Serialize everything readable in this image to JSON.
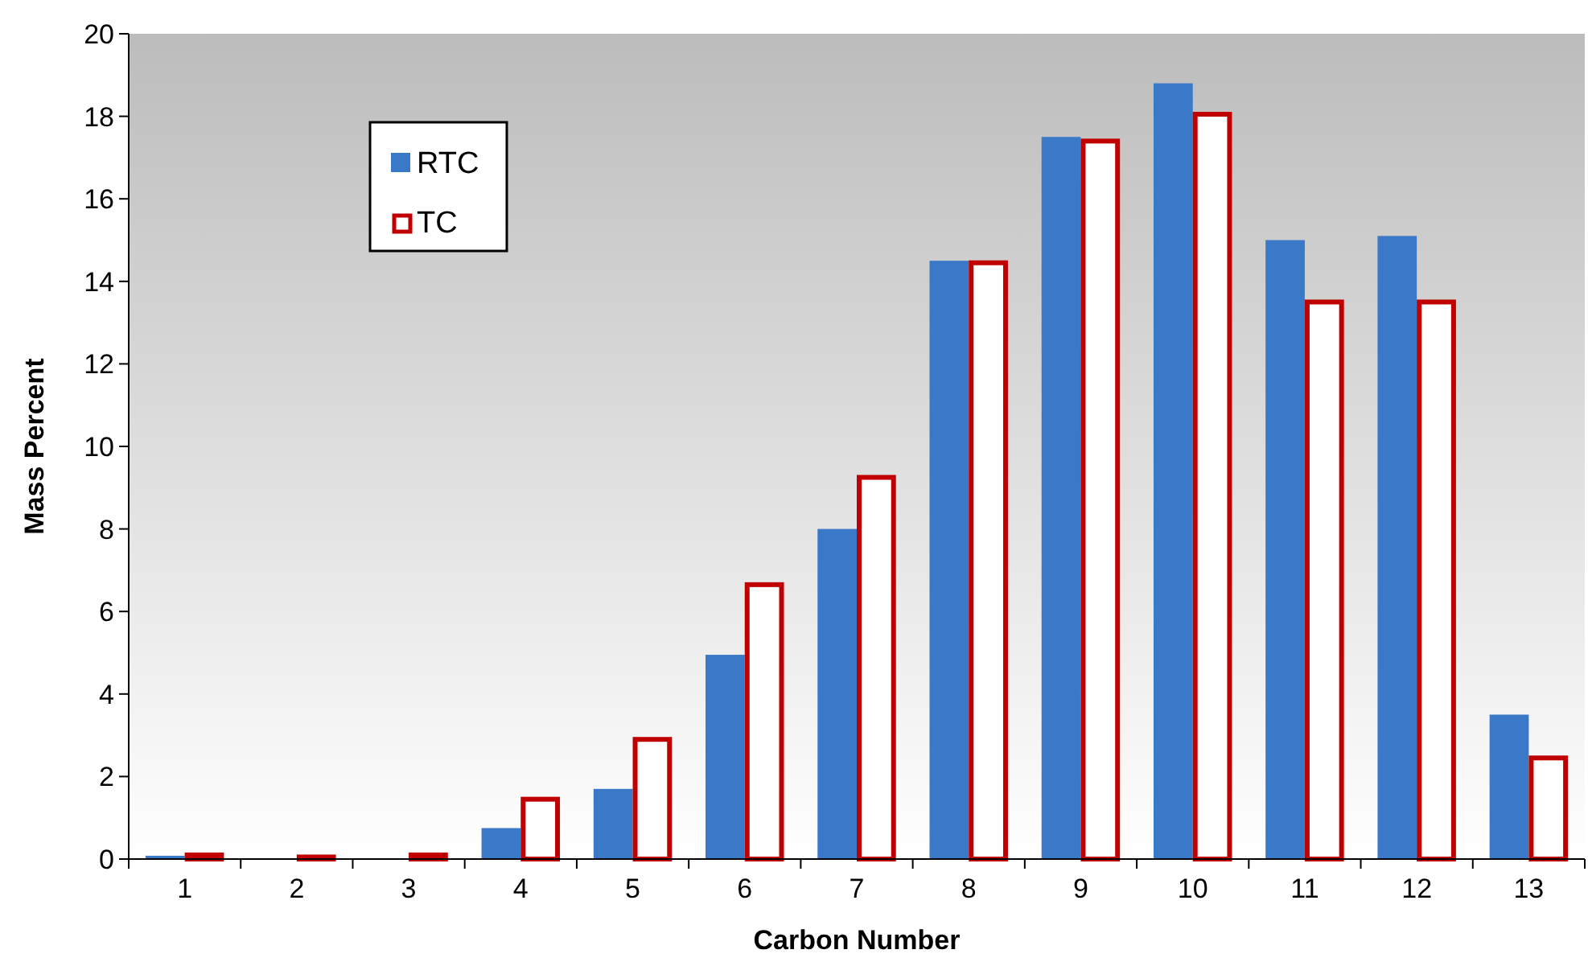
{
  "chart_data": {
    "type": "bar",
    "xlabel": "Carbon Number",
    "ylabel": "Mass Percent",
    "categories": [
      "1",
      "2",
      "3",
      "4",
      "5",
      "6",
      "7",
      "8",
      "9",
      "10",
      "11",
      "12",
      "13"
    ],
    "series": [
      {
        "name": "RTC",
        "color": "#3a78c8",
        "values": [
          0.08,
          null,
          null,
          0.75,
          1.7,
          4.95,
          8.0,
          14.5,
          17.5,
          18.8,
          15.0,
          15.1,
          3.5
        ]
      },
      {
        "name": "TC",
        "color": "#c00000",
        "values": [
          0.1,
          0.05,
          0.1,
          1.45,
          2.9,
          6.65,
          9.25,
          14.45,
          17.4,
          18.05,
          13.5,
          13.5,
          2.45
        ]
      }
    ],
    "ylim": [
      0,
      20
    ],
    "yticks": [
      0,
      2,
      4,
      6,
      8,
      10,
      12,
      14,
      16,
      18,
      20
    ],
    "legend": "top left",
    "grid": false
  }
}
